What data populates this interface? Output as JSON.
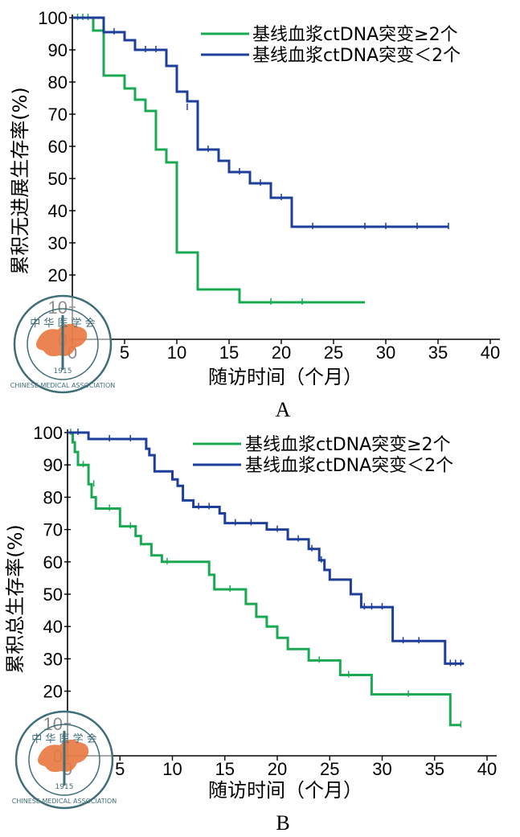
{
  "colors": {
    "mut_ge2": "#1aa853",
    "mut_lt2": "#1d3f9a",
    "axis": "#000000",
    "watermark": "#3f6e79",
    "watermark_map": "#e8773f"
  },
  "watermark": {
    "text_top": "中 华 医 学 会",
    "text_bottom": "CHINESE MEDICAL ASSOCIATION",
    "year": "1915"
  },
  "chart_data": [
    {
      "type": "line",
      "panel_label": "A",
      "xlabel": "随访时间（个月）",
      "ylabel": "累积无进展生存率(%)",
      "xlim": [
        0,
        40
      ],
      "ylim": [
        0,
        100
      ],
      "xticks": [
        0,
        5,
        10,
        15,
        20,
        25,
        30,
        35,
        40
      ],
      "yticks": [
        0,
        10,
        20,
        30,
        40,
        50,
        60,
        70,
        80,
        90,
        100
      ],
      "legend_position": "top-right",
      "series": [
        {
          "name": "基线血浆ctDNA突变≥2个",
          "color_key": "mut_ge2",
          "points": [
            [
              0,
              100
            ],
            [
              2,
              100
            ],
            [
              2,
              96
            ],
            [
              3,
              96
            ],
            [
              3,
              82
            ],
            [
              5,
              82
            ],
            [
              5,
              78
            ],
            [
              6,
              78
            ],
            [
              6,
              74.5
            ],
            [
              7,
              74.5
            ],
            [
              7,
              71
            ],
            [
              8,
              71
            ],
            [
              8,
              59
            ],
            [
              9,
              59
            ],
            [
              9,
              55
            ],
            [
              10,
              55
            ],
            [
              10,
              27
            ],
            [
              12,
              27
            ],
            [
              12,
              15.5
            ],
            [
              16,
              15.5
            ],
            [
              16,
              11.5
            ],
            [
              28,
              11.5
            ]
          ],
          "censored": [
            [
              0.5,
              100
            ],
            [
              1,
              100
            ],
            [
              1.5,
              100
            ],
            [
              19,
              11.5
            ],
            [
              22,
              11.5
            ]
          ]
        },
        {
          "name": "基线血浆ctDNA突变＜2个",
          "color_key": "mut_lt2",
          "points": [
            [
              0,
              100
            ],
            [
              3,
              100
            ],
            [
              3,
              95.5
            ],
            [
              5,
              95.5
            ],
            [
              5,
              93
            ],
            [
              6,
              93
            ],
            [
              6,
              90
            ],
            [
              9,
              90
            ],
            [
              9,
              85
            ],
            [
              10,
              85
            ],
            [
              10,
              77
            ],
            [
              11,
              77
            ],
            [
              11,
              74
            ],
            [
              12,
              74
            ],
            [
              12,
              59
            ],
            [
              14,
              59
            ],
            [
              14,
              55.5
            ],
            [
              15,
              55.5
            ],
            [
              15,
              52
            ],
            [
              17,
              52
            ],
            [
              17,
              48.5
            ],
            [
              19,
              48.5
            ],
            [
              19,
              44
            ],
            [
              21,
              44
            ],
            [
              21,
              35
            ],
            [
              36,
              35
            ]
          ],
          "censored": [
            [
              4,
              95.5
            ],
            [
              7,
              90
            ],
            [
              8,
              90
            ],
            [
              11,
              72
            ],
            [
              13,
              59
            ],
            [
              16,
              52
            ],
            [
              18,
              48.5
            ],
            [
              20,
              44
            ],
            [
              23,
              35
            ],
            [
              28,
              35
            ],
            [
              30,
              35
            ],
            [
              33,
              35
            ],
            [
              36,
              35
            ]
          ]
        }
      ]
    },
    {
      "type": "line",
      "panel_label": "B",
      "xlabel": "随访时间（个月）",
      "ylabel": "累积总生存率(%)",
      "xlim": [
        0,
        40
      ],
      "ylim": [
        0,
        100
      ],
      "xticks": [
        0,
        5,
        10,
        15,
        20,
        25,
        30,
        35,
        40
      ],
      "yticks": [
        0,
        10,
        20,
        30,
        40,
        50,
        60,
        70,
        80,
        90,
        100
      ],
      "legend_position": "top-right",
      "series": [
        {
          "name": "基线血浆ctDNA突变≥2个",
          "color_key": "mut_ge2",
          "points": [
            [
              0,
              100
            ],
            [
              0.5,
              100
            ],
            [
              0.5,
              97
            ],
            [
              0.7,
              97
            ],
            [
              0.7,
              94
            ],
            [
              1,
              94
            ],
            [
              1,
              90
            ],
            [
              2,
              90
            ],
            [
              2,
              84
            ],
            [
              2.3,
              84
            ],
            [
              2.3,
              80
            ],
            [
              2.7,
              80
            ],
            [
              2.7,
              76.5
            ],
            [
              5,
              76.5
            ],
            [
              5,
              71
            ],
            [
              6.5,
              71
            ],
            [
              6.5,
              68
            ],
            [
              7,
              68
            ],
            [
              7,
              65.5
            ],
            [
              8,
              65.5
            ],
            [
              8,
              62
            ],
            [
              9,
              62
            ],
            [
              9,
              60
            ],
            [
              13.5,
              60
            ],
            [
              13.5,
              56
            ],
            [
              14,
              56
            ],
            [
              14,
              51.5
            ],
            [
              17,
              51.5
            ],
            [
              17,
              47
            ],
            [
              18,
              47
            ],
            [
              18,
              43
            ],
            [
              19,
              43
            ],
            [
              19,
              40
            ],
            [
              20,
              40
            ],
            [
              20,
              36.5
            ],
            [
              21,
              36.5
            ],
            [
              21,
              33
            ],
            [
              23,
              33
            ],
            [
              23,
              29.5
            ],
            [
              26,
              29.5
            ],
            [
              26,
              25
            ],
            [
              29,
              25
            ],
            [
              29,
              19
            ],
            [
              36.5,
              19
            ],
            [
              36.5,
              9.5
            ],
            [
              37.5,
              9.5
            ]
          ],
          "censored": [
            [
              0.3,
              100
            ],
            [
              1.5,
              90
            ],
            [
              2.5,
              84
            ],
            [
              4,
              76.5
            ],
            [
              6,
              71
            ],
            [
              9.5,
              60
            ],
            [
              15.5,
              51.5
            ],
            [
              24,
              29.5
            ],
            [
              26.8,
              25
            ],
            [
              32.5,
              19
            ],
            [
              37.5,
              9.5
            ]
          ]
        },
        {
          "name": "基线血浆ctDNA突变＜2个",
          "color_key": "mut_lt2",
          "points": [
            [
              0,
              100
            ],
            [
              2,
              100
            ],
            [
              2,
              98
            ],
            [
              7.5,
              98
            ],
            [
              7.5,
              95
            ],
            [
              7.8,
              95
            ],
            [
              7.8,
              93
            ],
            [
              8.3,
              93
            ],
            [
              8.3,
              88
            ],
            [
              10,
              88
            ],
            [
              10,
              85.5
            ],
            [
              10.5,
              85.5
            ],
            [
              10.5,
              83.5
            ],
            [
              11,
              83.5
            ],
            [
              11,
              79
            ],
            [
              12,
              79
            ],
            [
              12,
              77
            ],
            [
              14.5,
              77
            ],
            [
              14.5,
              75
            ],
            [
              15,
              75
            ],
            [
              15,
              72
            ],
            [
              19,
              72
            ],
            [
              19,
              70
            ],
            [
              21,
              70
            ],
            [
              21,
              67
            ],
            [
              23,
              67
            ],
            [
              23,
              64
            ],
            [
              24,
              64
            ],
            [
              24,
              60.5
            ],
            [
              24.5,
              60.5
            ],
            [
              24.5,
              57.5
            ],
            [
              25,
              57.5
            ],
            [
              25,
              54.5
            ],
            [
              27,
              54.5
            ],
            [
              27,
              50
            ],
            [
              28,
              50
            ],
            [
              28,
              46
            ],
            [
              31,
              46
            ],
            [
              31,
              35.5
            ],
            [
              36,
              35.5
            ],
            [
              36,
              28.5
            ],
            [
              37.8,
              28.5
            ]
          ],
          "censored": [
            [
              1,
              100
            ],
            [
              4,
              98
            ],
            [
              6,
              98
            ],
            [
              12.5,
              77
            ],
            [
              13.5,
              77
            ],
            [
              16,
              72
            ],
            [
              17.5,
              72
            ],
            [
              20,
              70
            ],
            [
              22,
              67
            ],
            [
              23.3,
              64
            ],
            [
              24.2,
              60.5
            ],
            [
              28.3,
              46
            ],
            [
              29,
              46
            ],
            [
              30,
              46
            ],
            [
              32,
              35.5
            ],
            [
              33.5,
              35.5
            ],
            [
              36.5,
              28.5
            ],
            [
              37,
              28.5
            ],
            [
              37.5,
              28.5
            ]
          ]
        }
      ]
    }
  ]
}
